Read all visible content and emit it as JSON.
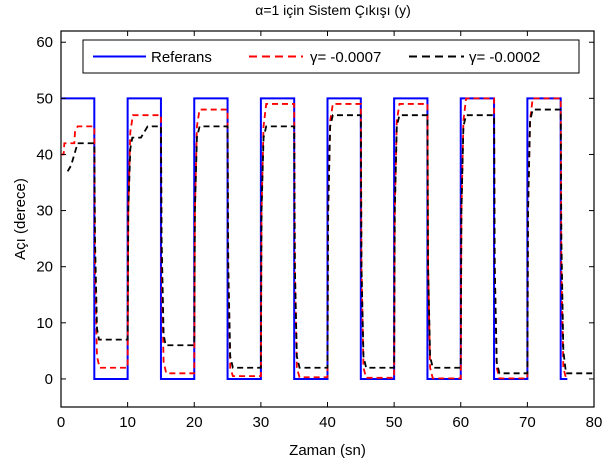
{
  "chart_data": {
    "type": "line",
    "title": "α=1 için Sistem Çıkışı (y)",
    "xlabel": "Zaman (sn)",
    "ylabel": "Açı (derece)",
    "xlim": [
      0,
      80
    ],
    "ylim": [
      -5,
      62
    ],
    "xticks": [
      0,
      10,
      20,
      30,
      40,
      50,
      60,
      70,
      80
    ],
    "yticks": [
      0,
      10,
      20,
      30,
      40,
      50,
      60
    ],
    "xtick_labels": [
      "0",
      "10",
      "20",
      "30",
      "40",
      "50",
      "60",
      "70",
      "80"
    ],
    "ytick_labels": [
      "0",
      "10",
      "20",
      "30",
      "40",
      "50",
      "60"
    ],
    "grid": false,
    "legend_position": "top",
    "legend_labels": [
      "Referans",
      "γ= -0.0007",
      "γ= -0.0002"
    ],
    "series": [
      {
        "name": "Referans",
        "color": "#0000ff",
        "dash": "solid",
        "points": [
          [
            0,
            50
          ],
          [
            5,
            50
          ],
          [
            5,
            0
          ],
          [
            10,
            0
          ],
          [
            10,
            50
          ],
          [
            15,
            50
          ],
          [
            15,
            0
          ],
          [
            20,
            0
          ],
          [
            20,
            50
          ],
          [
            25,
            50
          ],
          [
            25,
            0
          ],
          [
            30,
            0
          ],
          [
            30,
            50
          ],
          [
            35,
            50
          ],
          [
            35,
            0
          ],
          [
            40,
            0
          ],
          [
            40,
            50
          ],
          [
            45,
            50
          ],
          [
            45,
            0
          ],
          [
            50,
            0
          ],
          [
            50,
            50
          ],
          [
            55,
            50
          ],
          [
            55,
            0
          ],
          [
            60,
            0
          ],
          [
            60,
            50
          ],
          [
            65,
            50
          ],
          [
            65,
            0
          ],
          [
            70,
            0
          ],
          [
            70,
            50
          ],
          [
            75,
            50
          ],
          [
            75,
            0
          ],
          [
            76,
            0
          ]
        ]
      },
      {
        "name": "γ= -0.0007",
        "color": "#ff0000",
        "dash": "dashed",
        "points": [
          [
            0,
            40
          ],
          [
            0.4,
            40
          ],
          [
            0.5,
            42
          ],
          [
            2,
            42
          ],
          [
            2.1,
            44
          ],
          [
            2.5,
            45
          ],
          [
            5,
            45
          ],
          [
            5.1,
            20
          ],
          [
            5.4,
            4
          ],
          [
            5.8,
            2
          ],
          [
            10,
            2
          ],
          [
            10.1,
            30
          ],
          [
            10.4,
            44
          ],
          [
            10.8,
            47
          ],
          [
            15,
            47
          ],
          [
            15.1,
            20
          ],
          [
            15.4,
            3
          ],
          [
            15.8,
            1
          ],
          [
            20,
            1
          ],
          [
            20.1,
            30
          ],
          [
            20.4,
            45
          ],
          [
            20.8,
            48
          ],
          [
            25,
            48
          ],
          [
            25.1,
            20
          ],
          [
            25.4,
            2
          ],
          [
            25.8,
            0.5
          ],
          [
            30,
            0.5
          ],
          [
            30.1,
            30
          ],
          [
            30.4,
            45
          ],
          [
            30.8,
            49
          ],
          [
            35,
            49
          ],
          [
            35.1,
            20
          ],
          [
            35.4,
            2
          ],
          [
            35.8,
            0.3
          ],
          [
            40,
            0.3
          ],
          [
            40.1,
            30
          ],
          [
            40.4,
            46
          ],
          [
            40.8,
            49
          ],
          [
            45,
            49
          ],
          [
            45.1,
            20
          ],
          [
            45.4,
            2
          ],
          [
            45.8,
            0.2
          ],
          [
            50,
            0.2
          ],
          [
            50.1,
            30
          ],
          [
            50.4,
            46
          ],
          [
            50.8,
            49
          ],
          [
            55,
            49
          ],
          [
            55.1,
            20
          ],
          [
            55.4,
            2
          ],
          [
            55.8,
            0.1
          ],
          [
            60,
            0.1
          ],
          [
            60.1,
            30
          ],
          [
            60.4,
            46
          ],
          [
            60.8,
            50
          ],
          [
            65,
            50
          ],
          [
            65.1,
            20
          ],
          [
            65.4,
            2
          ],
          [
            65.8,
            0.1
          ],
          [
            70,
            0.1
          ],
          [
            70.1,
            30
          ],
          [
            70.4,
            46
          ],
          [
            70.8,
            50
          ],
          [
            75,
            50
          ],
          [
            75.1,
            20
          ],
          [
            75.4,
            2
          ],
          [
            75.8,
            0.1
          ],
          [
            76,
            0.1
          ]
        ]
      },
      {
        "name": "γ= -0.0002",
        "color": "#000000",
        "dash": "dashed",
        "points": [
          [
            1,
            37
          ],
          [
            1.5,
            38
          ],
          [
            2,
            40
          ],
          [
            2.5,
            42
          ],
          [
            5,
            42
          ],
          [
            5.1,
            25
          ],
          [
            5.4,
            9
          ],
          [
            5.7,
            7
          ],
          [
            10,
            7
          ],
          [
            10.1,
            30
          ],
          [
            10.4,
            41
          ],
          [
            10.7,
            43
          ],
          [
            12,
            43
          ],
          [
            12.5,
            44
          ],
          [
            13,
            45
          ],
          [
            15,
            45
          ],
          [
            15.1,
            25
          ],
          [
            15.4,
            8
          ],
          [
            15.7,
            6
          ],
          [
            20,
            6
          ],
          [
            20.1,
            30
          ],
          [
            20.4,
            43
          ],
          [
            20.8,
            45
          ],
          [
            25,
            45
          ],
          [
            25.1,
            20
          ],
          [
            25.4,
            4
          ],
          [
            25.8,
            2
          ],
          [
            30,
            2
          ],
          [
            30.1,
            30
          ],
          [
            30.4,
            43
          ],
          [
            30.8,
            45
          ],
          [
            35,
            45
          ],
          [
            35.1,
            20
          ],
          [
            35.4,
            4
          ],
          [
            35.8,
            2
          ],
          [
            40,
            2
          ],
          [
            40.1,
            30
          ],
          [
            40.4,
            45
          ],
          [
            40.8,
            47
          ],
          [
            45,
            47
          ],
          [
            45.1,
            20
          ],
          [
            45.4,
            4
          ],
          [
            45.8,
            2
          ],
          [
            50,
            2
          ],
          [
            50.1,
            30
          ],
          [
            50.4,
            45
          ],
          [
            50.8,
            47
          ],
          [
            55,
            47
          ],
          [
            55.1,
            20
          ],
          [
            55.4,
            4
          ],
          [
            55.8,
            2
          ],
          [
            60,
            2
          ],
          [
            60.1,
            30
          ],
          [
            60.4,
            45
          ],
          [
            60.8,
            47
          ],
          [
            65,
            47
          ],
          [
            65.1,
            20
          ],
          [
            65.4,
            3
          ],
          [
            65.8,
            1
          ],
          [
            70,
            1
          ],
          [
            70.1,
            30
          ],
          [
            70.4,
            46
          ],
          [
            70.8,
            48
          ],
          [
            75,
            48
          ],
          [
            75.1,
            25
          ],
          [
            75.4,
            5
          ],
          [
            75.8,
            1
          ],
          [
            80,
            1
          ]
        ]
      }
    ]
  }
}
